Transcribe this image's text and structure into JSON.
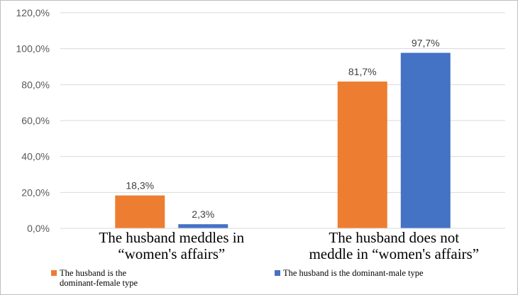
{
  "chart_data": {
    "type": "bar",
    "categories": [
      [
        "The husband meddles in",
        "“women's affairs”"
      ],
      [
        "The husband does not",
        "meddle in “women's affairs”"
      ]
    ],
    "series": [
      {
        "name": [
          "The husband is the",
          "dominant-female type"
        ],
        "color": "#ED7D31",
        "values": [
          18.3,
          81.7
        ],
        "labels": [
          "18,3%",
          "81,7%"
        ]
      },
      {
        "name": [
          "The husband is the dominant-male type"
        ],
        "color": "#4472C4",
        "values": [
          2.3,
          97.7
        ],
        "labels": [
          "2,3%",
          "97,7%"
        ]
      }
    ],
    "yticks": [
      "0,0%",
      "20,0%",
      "40,0%",
      "60,0%",
      "80,0%",
      "100,0%",
      "120,0%"
    ],
    "ylim": [
      0,
      120
    ],
    "grid": true,
    "legend": "bottom",
    "gridColor": "#D9D9D9"
  }
}
